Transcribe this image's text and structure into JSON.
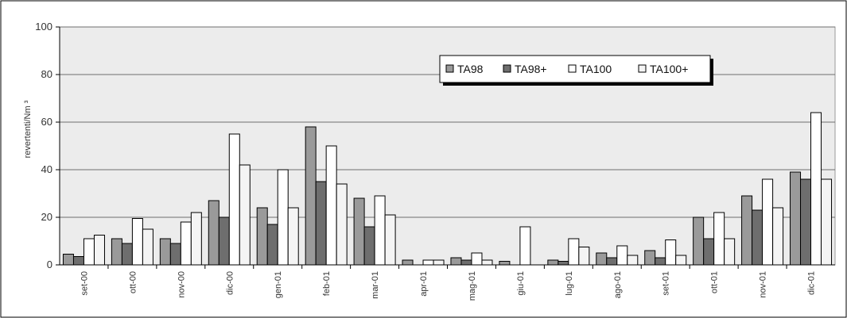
{
  "chart_data": {
    "type": "bar",
    "ylabel": "revertenti/Nm ³",
    "ylim": [
      0,
      100
    ],
    "yticks": [
      0,
      20,
      40,
      60,
      80,
      100
    ],
    "grid": true,
    "legend_position": "top-right",
    "categories": [
      "set-00",
      "ott-00",
      "nov-00",
      "dic-00",
      "gen-01",
      "feb-01",
      "mar-01",
      "apr-01",
      "mag-01",
      "giu-01",
      "lug-01",
      "ago-01",
      "set-01",
      "ott-01",
      "nov-01",
      "dic-01"
    ],
    "series": [
      {
        "name": "TA98",
        "color": "#9a9a9a",
        "values": [
          4.5,
          11,
          11,
          27,
          24,
          58,
          28,
          2,
          3,
          1.5,
          2,
          5,
          6,
          20,
          29,
          39
        ]
      },
      {
        "name": "TA98+",
        "color": "#6e6e6e",
        "values": [
          3.5,
          9,
          9,
          20,
          17,
          35,
          16,
          0,
          2,
          0,
          1.5,
          3,
          3,
          11,
          23,
          36
        ]
      },
      {
        "name": "TA100",
        "color": "#ffffff",
        "values": [
          11,
          19.5,
          18,
          55,
          40,
          50,
          29,
          2,
          5,
          16,
          11,
          8,
          10.5,
          22,
          36,
          64
        ]
      },
      {
        "name": "TA100+",
        "color": "#f4f4f4",
        "values": [
          12.5,
          15,
          22,
          42,
          24,
          34,
          21,
          2,
          2,
          0,
          7.5,
          4,
          4,
          11,
          24,
          36
        ]
      }
    ]
  }
}
